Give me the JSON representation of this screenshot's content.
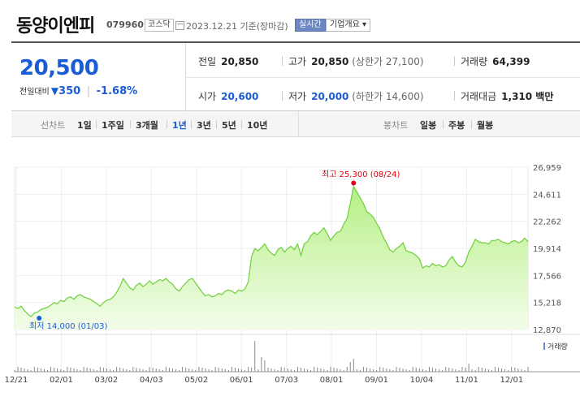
{
  "header": {
    "name": "동양이엔피",
    "code": "079960",
    "market": "코스닥",
    "date": "2023.12.21 기준(장마감)",
    "realtime": "실시간",
    "company_info": "기업개요 ▾"
  },
  "quote": {
    "price": "20,500",
    "diff_label": "전일대비",
    "diff_arrow": "▼",
    "diff": "350",
    "diff_rate": "-1.68%",
    "prev_label": "전일",
    "prev": "20,850",
    "high_label": "고가",
    "high": "20,850",
    "upper_limit": "(상한가 27,100)",
    "volume_label": "거래량",
    "volume": "64,399",
    "open_label": "시가",
    "open": "20,600",
    "low_label": "저가",
    "low": "20,000",
    "lower_limit": "(하한가 14,600)",
    "amount_label": "거래대금",
    "amount": "1,310 백만"
  },
  "toolbar": {
    "line_label": "선차트",
    "periods": [
      "1일",
      "1주일",
      "3개월",
      "1년",
      "3년",
      "5년",
      "10년"
    ],
    "active_period": "1년",
    "candle_label": "봉차트",
    "candles": [
      "일봉",
      "주봉",
      "월봉"
    ]
  },
  "chart_data": {
    "type": "area",
    "y_ticks": [
      "26,959",
      "24,611",
      "22,262",
      "19,914",
      "17,566",
      "15,218",
      "12,870"
    ],
    "ylim": [
      12870,
      26959
    ],
    "x_labels": [
      "12/21",
      "02/01",
      "03/02",
      "04/03",
      "05/02",
      "06/01",
      "07/03",
      "08/01",
      "09/01",
      "10/04",
      "11/01",
      "12/01"
    ],
    "high_annotation": "최고 25,300 (08/24)",
    "low_annotation": "최저 14,000 (01/03)",
    "volume_label": "거래량",
    "line_color": "#6fcf3b",
    "fill_color": "#c9f3a8",
    "high_color": "#e60012",
    "low_color": "#1a5cd6",
    "series": [
      [
        0,
        14800
      ],
      [
        2,
        14700
      ],
      [
        4,
        14900
      ],
      [
        6,
        14500
      ],
      [
        8,
        14200
      ],
      [
        10,
        14000
      ],
      [
        12,
        14300
      ],
      [
        14,
        14400
      ],
      [
        16,
        14600
      ],
      [
        18,
        14700
      ],
      [
        20,
        14800
      ],
      [
        22,
        15000
      ],
      [
        24,
        15200
      ],
      [
        26,
        15100
      ],
      [
        28,
        15400
      ],
      [
        30,
        15300
      ],
      [
        32,
        15600
      ],
      [
        34,
        15700
      ],
      [
        36,
        15500
      ],
      [
        38,
        15800
      ],
      [
        40,
        15900
      ],
      [
        42,
        15700
      ],
      [
        44,
        15600
      ],
      [
        46,
        15500
      ],
      [
        48,
        15300
      ],
      [
        50,
        15100
      ],
      [
        52,
        14900
      ],
      [
        54,
        15200
      ],
      [
        56,
        15400
      ],
      [
        58,
        15500
      ],
      [
        60,
        15700
      ],
      [
        62,
        16100
      ],
      [
        64,
        16600
      ],
      [
        66,
        17300
      ],
      [
        68,
        16900
      ],
      [
        70,
        16500
      ],
      [
        72,
        16300
      ],
      [
        74,
        16700
      ],
      [
        76,
        16900
      ],
      [
        78,
        16600
      ],
      [
        80,
        16800
      ],
      [
        82,
        17100
      ],
      [
        84,
        16800
      ],
      [
        86,
        17000
      ],
      [
        88,
        17200
      ],
      [
        90,
        17100
      ],
      [
        92,
        17300
      ],
      [
        94,
        17000
      ],
      [
        96,
        16800
      ],
      [
        98,
        16400
      ],
      [
        100,
        16200
      ],
      [
        102,
        16600
      ],
      [
        104,
        16900
      ],
      [
        106,
        17200
      ],
      [
        108,
        17300
      ],
      [
        110,
        16900
      ],
      [
        112,
        16500
      ],
      [
        114,
        16100
      ],
      [
        116,
        15800
      ],
      [
        118,
        15900
      ],
      [
        120,
        15700
      ],
      [
        122,
        15800
      ],
      [
        124,
        16000
      ],
      [
        126,
        15900
      ],
      [
        128,
        16200
      ],
      [
        130,
        16300
      ],
      [
        132,
        16200
      ],
      [
        134,
        16000
      ],
      [
        136,
        16300
      ],
      [
        138,
        16200
      ],
      [
        140,
        16400
      ],
      [
        142,
        17000
      ],
      [
        144,
        19200
      ],
      [
        146,
        19900
      ],
      [
        148,
        19700
      ],
      [
        150,
        20000
      ],
      [
        152,
        20300
      ],
      [
        154,
        19800
      ],
      [
        156,
        19500
      ],
      [
        158,
        19300
      ],
      [
        160,
        19800
      ],
      [
        162,
        20000
      ],
      [
        164,
        19600
      ],
      [
        166,
        19900
      ],
      [
        168,
        20100
      ],
      [
        170,
        19800
      ],
      [
        172,
        20300
      ],
      [
        174,
        19300
      ],
      [
        176,
        20300
      ],
      [
        178,
        20500
      ],
      [
        180,
        21000
      ],
      [
        182,
        21300
      ],
      [
        184,
        21100
      ],
      [
        186,
        21400
      ],
      [
        188,
        21700
      ],
      [
        190,
        21200
      ],
      [
        192,
        20600
      ],
      [
        194,
        21000
      ],
      [
        196,
        21300
      ],
      [
        198,
        21400
      ],
      [
        200,
        22000
      ],
      [
        202,
        22500
      ],
      [
        204,
        23800
      ],
      [
        206,
        25300
      ],
      [
        208,
        24800
      ],
      [
        210,
        24300
      ],
      [
        212,
        23800
      ],
      [
        214,
        23100
      ],
      [
        216,
        22900
      ],
      [
        218,
        22600
      ],
      [
        220,
        22100
      ],
      [
        222,
        21600
      ],
      [
        224,
        20900
      ],
      [
        226,
        20400
      ],
      [
        228,
        19800
      ],
      [
        230,
        19600
      ],
      [
        232,
        19900
      ],
      [
        234,
        20100
      ],
      [
        236,
        20400
      ],
      [
        238,
        19700
      ],
      [
        240,
        19600
      ],
      [
        242,
        19500
      ],
      [
        244,
        19300
      ],
      [
        246,
        19000
      ],
      [
        248,
        18200
      ],
      [
        250,
        18400
      ],
      [
        252,
        18300
      ],
      [
        254,
        18600
      ],
      [
        256,
        18400
      ],
      [
        258,
        18500
      ],
      [
        260,
        18300
      ],
      [
        262,
        18400
      ],
      [
        264,
        18900
      ],
      [
        266,
        19200
      ],
      [
        268,
        18700
      ],
      [
        270,
        18400
      ],
      [
        272,
        18300
      ],
      [
        274,
        18700
      ],
      [
        276,
        19600
      ],
      [
        278,
        20100
      ],
      [
        280,
        20700
      ],
      [
        282,
        20500
      ],
      [
        284,
        20400
      ],
      [
        286,
        20400
      ],
      [
        288,
        20300
      ],
      [
        290,
        20600
      ],
      [
        292,
        20600
      ],
      [
        294,
        20700
      ],
      [
        296,
        20500
      ],
      [
        298,
        20400
      ],
      [
        300,
        20300
      ],
      [
        302,
        20500
      ],
      [
        304,
        20600
      ],
      [
        306,
        20400
      ],
      [
        308,
        20500
      ],
      [
        310,
        20800
      ],
      [
        312,
        20500
      ]
    ]
  }
}
